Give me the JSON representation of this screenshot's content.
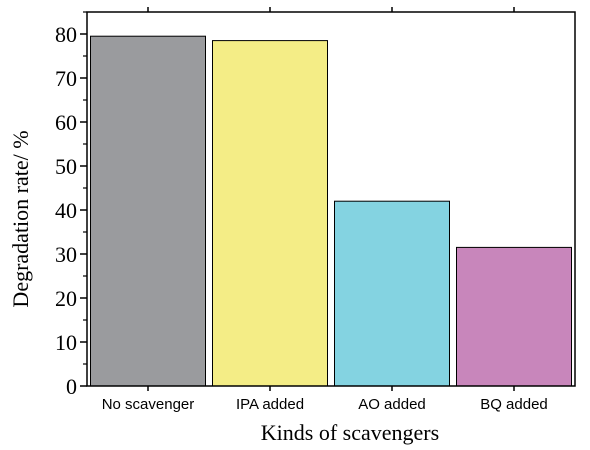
{
  "chart_data": {
    "type": "bar",
    "categories": [
      "No scavenger",
      "IPA added",
      "AO added",
      "BQ added"
    ],
    "values": [
      79.5,
      78.5,
      42,
      31.5
    ],
    "colors": [
      "#9a9b9e",
      "#f4ed86",
      "#84d3e1",
      "#c886bb"
    ],
    "xlabel": "Kinds of scavengers",
    "ylabel": "Degradation rate/ %",
    "ylim": [
      0,
      85
    ],
    "yticks": [
      0,
      10,
      20,
      30,
      40,
      50,
      60,
      70,
      80
    ],
    "grid": false,
    "legend": "none"
  }
}
